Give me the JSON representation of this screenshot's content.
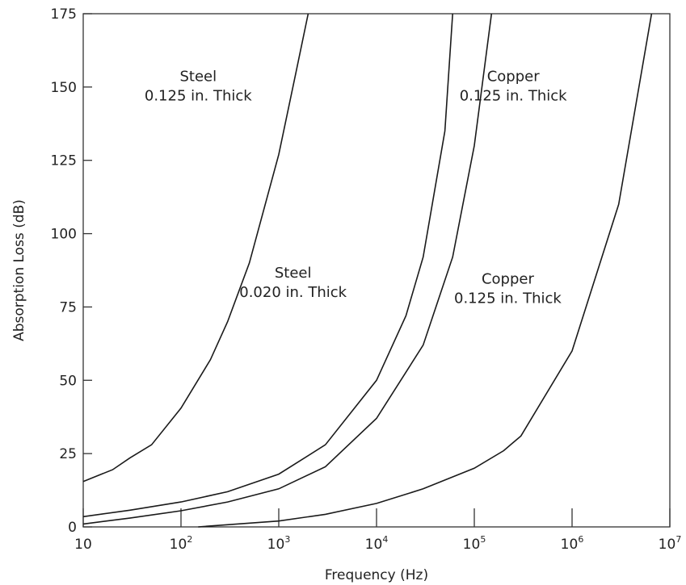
{
  "chart_data": {
    "type": "line",
    "xlabel": "Frequency (Hz)",
    "ylabel": "Absorption Loss (dB)",
    "x_scale": "log",
    "xlim": [
      10,
      10000000
    ],
    "ylim": [
      0,
      175
    ],
    "grid": false,
    "x_ticks": [
      {
        "value": 10,
        "base": "10",
        "exp": ""
      },
      {
        "value": 100,
        "base": "10",
        "exp": "2"
      },
      {
        "value": 1000,
        "base": "10",
        "exp": "3"
      },
      {
        "value": 10000,
        "base": "10",
        "exp": "4"
      },
      {
        "value": 100000,
        "base": "10",
        "exp": "5"
      },
      {
        "value": 1000000,
        "base": "10",
        "exp": "6"
      },
      {
        "value": 10000000,
        "base": "10",
        "exp": "7"
      }
    ],
    "y_ticks": [
      {
        "value": 0,
        "label": "0"
      },
      {
        "value": 25,
        "label": "25"
      },
      {
        "value": 50,
        "label": "50"
      },
      {
        "value": 75,
        "label": "75"
      },
      {
        "value": 100,
        "label": "100"
      },
      {
        "value": 125,
        "label": "125"
      },
      {
        "value": 150,
        "label": "150"
      },
      {
        "value": 175,
        "label": "175"
      }
    ],
    "series": [
      {
        "label_lines": [
          "Steel",
          "0.125 in. Thick"
        ],
        "label_anchor": {
          "x": 150,
          "y": 152
        },
        "points": [
          [
            10,
            15.5
          ],
          [
            20,
            19.5
          ],
          [
            30,
            23.5
          ],
          [
            50,
            28
          ],
          [
            100,
            40.5
          ],
          [
            200,
            57
          ],
          [
            300,
            70
          ],
          [
            500,
            90
          ],
          [
            1000,
            127
          ],
          [
            1500,
            155
          ],
          [
            2000,
            175
          ]
        ]
      },
      {
        "label_lines": [
          "Steel",
          "0.020 in. Thick"
        ],
        "label_anchor": {
          "x": 1400,
          "y": 85
        },
        "points": [
          [
            10,
            3.5
          ],
          [
            30,
            5.7
          ],
          [
            100,
            8.5
          ],
          [
            300,
            12
          ],
          [
            1000,
            18
          ],
          [
            3000,
            28
          ],
          [
            10000,
            50
          ],
          [
            20000,
            72
          ],
          [
            30000,
            92
          ],
          [
            50000,
            135
          ],
          [
            60000,
            175
          ]
        ]
      },
      {
        "label_lines": [
          "Copper",
          "0.125 in. Thick"
        ],
        "label_anchor": {
          "x": 250000,
          "y": 152
        },
        "points": [
          [
            10,
            1
          ],
          [
            30,
            3
          ],
          [
            100,
            5.5
          ],
          [
            300,
            8.5
          ],
          [
            1000,
            13
          ],
          [
            3000,
            20.5
          ],
          [
            10000,
            37
          ],
          [
            30000,
            62
          ],
          [
            60000,
            92
          ],
          [
            100000,
            130
          ],
          [
            150000,
            175
          ]
        ]
      },
      {
        "label_lines": [
          "Copper",
          "0.125 in. Thick"
        ],
        "label_anchor": {
          "x": 220000,
          "y": 83
        },
        "points": [
          [
            150,
            0
          ],
          [
            1000,
            2
          ],
          [
            3000,
            4.3
          ],
          [
            10000,
            8
          ],
          [
            30000,
            13
          ],
          [
            100000,
            20
          ],
          [
            200000,
            26
          ],
          [
            300000,
            31
          ],
          [
            1000000,
            60
          ],
          [
            3000000,
            110
          ],
          [
            6500000,
            175
          ]
        ]
      }
    ]
  }
}
